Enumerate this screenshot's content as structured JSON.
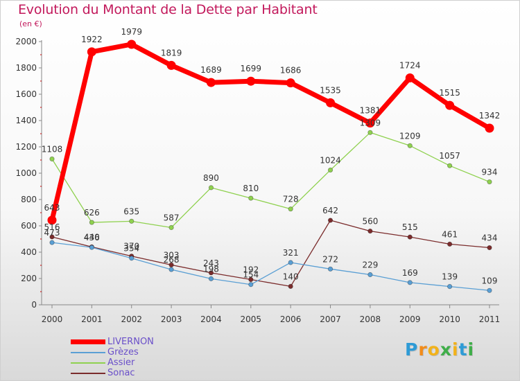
{
  "chart_data": {
    "type": "line",
    "title": "Evolution du Montant de la Dette par Habitant",
    "subtitle": "(en €)",
    "x": [
      "2000",
      "2001",
      "2002",
      "2003",
      "2004",
      "2005",
      "2006",
      "2007",
      "2008",
      "2009",
      "2010",
      "2011"
    ],
    "ylim": [
      0,
      2000
    ],
    "yticks": [
      "0",
      "200",
      "400",
      "600",
      "800",
      "1000",
      "1200",
      "1400",
      "1600",
      "1800",
      "2000"
    ],
    "grid": false,
    "legend_position": "bottom-left",
    "series": [
      {
        "name": "LIVERNON",
        "color": "#ff0000",
        "label_color": "#333333",
        "values": [
          643,
          1922,
          1979,
          1819,
          1689,
          1699,
          1686,
          1535,
          1381,
          1724,
          1515,
          1342
        ],
        "labels": [
          "643",
          "1922",
          "1979",
          "1819",
          "1689",
          "1699",
          "1686",
          "1535",
          "1381",
          "1724",
          "1515",
          "1342"
        ]
      },
      {
        "name": "Grèzes",
        "color": "#5a9fd4",
        "label_color": "#333333",
        "values": [
          473,
          436,
          354,
          268,
          198,
          154,
          321,
          272,
          229,
          169,
          139,
          109
        ],
        "labels": [
          "473",
          "436",
          "354",
          "268",
          "198",
          "154",
          "321",
          "272",
          "229",
          "169",
          "139",
          "109"
        ]
      },
      {
        "name": "Assier",
        "color": "#8fd14f",
        "label_color": "#333333",
        "values": [
          1108,
          626,
          635,
          587,
          890,
          810,
          728,
          1024,
          1309,
          1209,
          1057,
          934
        ],
        "labels": [
          "1108",
          "626",
          "635",
          "587",
          "890",
          "810",
          "728",
          "1024",
          "1309",
          "1209",
          "1057",
          "934"
        ]
      },
      {
        "name": "Sonac",
        "color": "#7b2c2c",
        "label_color": "#333333",
        "values": [
          516,
          440,
          370,
          303,
          243,
          192,
          140,
          642,
          560,
          515,
          461,
          434
        ],
        "labels": [
          "516",
          "440",
          "370",
          "303",
          "243",
          "192",
          "140",
          "642",
          "560",
          "515",
          "461",
          "434"
        ]
      }
    ]
  },
  "logo": {
    "letters": [
      "P",
      "r",
      "o",
      "x",
      "i",
      "t",
      "i"
    ],
    "colors": [
      "#2e9bd6",
      "#f28c1a",
      "#f2b21a",
      "#3fae49",
      "#f2b21a",
      "#2e9bd6",
      "#3fae49"
    ]
  },
  "legend_colors": {
    "LIVERNON": "#6a4fc9",
    "Grèzes": "#6a4fc9",
    "Assier": "#6a4fc9",
    "Sonac": "#6a4fc9"
  }
}
